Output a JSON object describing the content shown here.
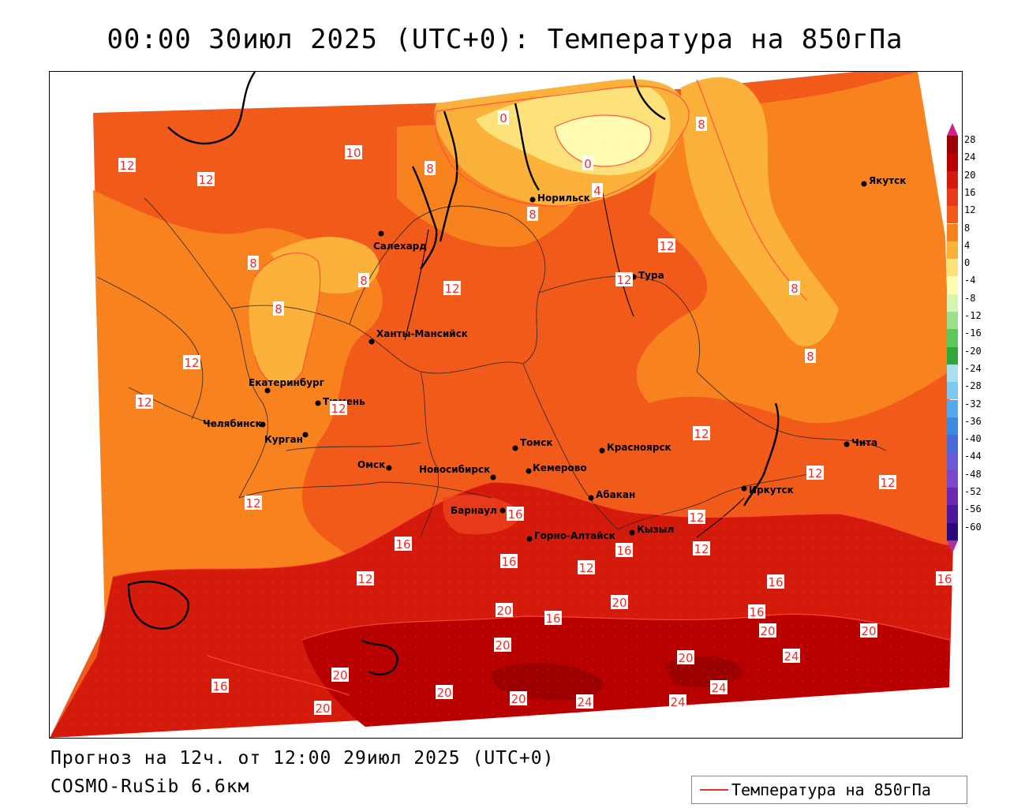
{
  "title": "00:00 30июл 2025 (UTC+0): Температура на 850гПа",
  "footer": {
    "forecast": "Прогноз на 12ч. от 12:00 29июл 2025 (UTC+0)",
    "model": "COSMO-RuSib 6.6км"
  },
  "legend": {
    "label": "Температура на 850гПа",
    "line_color": "#e8302a"
  },
  "colorbar": {
    "ticks": [
      "28",
      "24",
      "20",
      "16",
      "12",
      "8",
      "4",
      "0",
      "-4",
      "-8",
      "-12",
      "-16",
      "-20",
      "-24",
      "-28",
      "-32",
      "-36",
      "-40",
      "-44",
      "-48",
      "-52",
      "-56",
      "-60"
    ],
    "colors": [
      "#9c0000",
      "#b80000",
      "#d41a0a",
      "#e8391a",
      "#f25a1a",
      "#f7821e",
      "#fbb13a",
      "#fde27a",
      "#fffbb0",
      "#d6f5b0",
      "#9be08a",
      "#5cc85a",
      "#2fa838",
      "#a8e0f0",
      "#7fc8f0",
      "#55aaee",
      "#3a8ae0",
      "#4a6ad8",
      "#6a5ad8",
      "#7a48c8",
      "#6a28b0",
      "#4a1898",
      "#2a0a78"
    ],
    "top_arrow": "#d0208c",
    "bottom_arrow": "#b0309a"
  },
  "cities": [
    {
      "name": "Норильск"
    },
    {
      "name": "Якутск"
    },
    {
      "name": "Салехард"
    },
    {
      "name": "Тура"
    },
    {
      "name": "Ханты-Мансийск"
    },
    {
      "name": "Екатеринбург"
    },
    {
      "name": "Тюмень"
    },
    {
      "name": "Челябинск"
    },
    {
      "name": "Курган"
    },
    {
      "name": "Омск"
    },
    {
      "name": "Новосибирск"
    },
    {
      "name": "Томск"
    },
    {
      "name": "Красноярск"
    },
    {
      "name": "Кемерово"
    },
    {
      "name": "Абакан"
    },
    {
      "name": "Барнаул"
    },
    {
      "name": "Горно-Алтайск"
    },
    {
      "name": "Кызыл"
    },
    {
      "name": "Иркутск"
    },
    {
      "name": "Чита"
    }
  ],
  "contour_labels": [
    "0",
    "0",
    "4",
    "8",
    "8",
    "8",
    "8",
    "8",
    "8",
    "8",
    "8",
    "10",
    "12",
    "12",
    "12",
    "12",
    "12",
    "12",
    "12",
    "12",
    "12",
    "12",
    "12",
    "12",
    "12",
    "12",
    "12",
    "12",
    "16",
    "16",
    "16",
    "16",
    "16",
    "16",
    "16",
    "16",
    "16",
    "20",
    "20",
    "20",
    "20",
    "20",
    "20",
    "20",
    "20",
    "20",
    "20",
    "24",
    "24",
    "24",
    "24"
  ]
}
